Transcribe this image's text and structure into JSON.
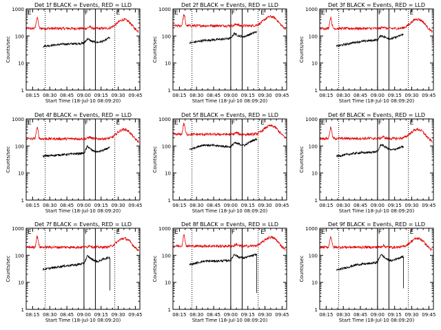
{
  "page": {
    "background": "#ffffff"
  },
  "style": {
    "events_color": "#000000",
    "lld_color": "#e00000",
    "axis_color": "#000000"
  },
  "shared": {
    "ylabel": "Counts/sec",
    "xlabel": "Start Time (18-Jul-10 08:09:20)",
    "x_ticks": [
      "08:15",
      "08:30",
      "08:45",
      "09:00",
      "09:15",
      "09:30",
      "09:45"
    ],
    "y_ticks": [
      "1",
      "10",
      "100",
      "1000"
    ],
    "ylim": [
      1,
      1000
    ],
    "y_scale": "log",
    "xlim": [
      "08:09:20",
      "09:49:00"
    ],
    "marker_F": "F",
    "marker_E": "E"
  },
  "chart_data": [
    {
      "type": "line",
      "title": "Det 1f BLACK = Events, RED = LLD",
      "F_window": [
        "09:00",
        "09:10"
      ],
      "E_time": "09:30",
      "dotted": [
        "08:26",
        "09:27"
      ],
      "lld_base": 190,
      "lld_peak": 400,
      "events_pts": [
        [
          8.4,
          42
        ],
        [
          8.7,
          50
        ],
        [
          8.88,
          52
        ],
        [
          9.0,
          54
        ],
        [
          9.05,
          80
        ],
        [
          9.12,
          62
        ],
        [
          9.2,
          58
        ],
        [
          9.3,
          66
        ],
        [
          9.36,
          85
        ],
        [
          9.38,
          85
        ]
      ],
      "drop": null
    },
    {
      "type": "line",
      "title": "Det 2f BLACK = Events, RED = LLD",
      "F_window": [
        "09:00",
        "09:10"
      ],
      "E_time": "09:28",
      "dotted": [
        "08:26",
        "09:24"
      ],
      "lld_base": 240,
      "lld_peak": 520,
      "events_pts": [
        [
          8.4,
          55
        ],
        [
          8.6,
          68
        ],
        [
          8.85,
          75
        ],
        [
          9.0,
          82
        ],
        [
          9.05,
          125
        ],
        [
          9.12,
          100
        ],
        [
          9.2,
          95
        ],
        [
          9.3,
          120
        ],
        [
          9.36,
          140
        ],
        [
          9.38,
          140
        ]
      ],
      "drop": null
    },
    {
      "type": "line",
      "title": "Det 3f BLACK = Events, RED = LLD",
      "F_window": [
        "09:00",
        "09:10"
      ],
      "E_time": "09:30",
      "dotted": [
        "08:26",
        "09:27"
      ],
      "lld_base": 190,
      "lld_peak": 420,
      "events_pts": [
        [
          8.4,
          42
        ],
        [
          8.7,
          60
        ],
        [
          8.9,
          68
        ],
        [
          9.0,
          72
        ],
        [
          9.05,
          105
        ],
        [
          9.12,
          88
        ],
        [
          9.2,
          78
        ],
        [
          9.3,
          96
        ],
        [
          9.36,
          112
        ],
        [
          9.38,
          112
        ]
      ],
      "drop": null
    },
    {
      "type": "line",
      "title": "Det 4f BLACK = Events, RED = LLD",
      "F_window": [
        "09:00",
        "09:10"
      ],
      "E_time": "09:30",
      "dotted": [
        "08:26",
        "09:27"
      ],
      "lld_base": 185,
      "lld_peak": 410,
      "events_pts": [
        [
          8.4,
          42
        ],
        [
          8.7,
          48
        ],
        [
          8.9,
          52
        ],
        [
          9.0,
          54
        ],
        [
          9.05,
          98
        ],
        [
          9.12,
          68
        ],
        [
          9.2,
          60
        ],
        [
          9.3,
          72
        ],
        [
          9.36,
          85
        ],
        [
          9.38,
          85
        ]
      ],
      "drop": null
    },
    {
      "type": "line",
      "title": "Det 5f BLACK = Events, RED = LLD",
      "F_window": [
        "09:00",
        "09:10"
      ],
      "E_time": "09:28",
      "dotted": [
        "08:26",
        "09:24"
      ],
      "lld_base": 270,
      "lld_peak": 560,
      "events_pts": [
        [
          8.4,
          75
        ],
        [
          8.6,
          110
        ],
        [
          8.85,
          100
        ],
        [
          9.0,
          92
        ],
        [
          9.05,
          130
        ],
        [
          9.12,
          118
        ],
        [
          9.2,
          105
        ],
        [
          9.3,
          150
        ],
        [
          9.36,
          175
        ],
        [
          9.38,
          175
        ]
      ],
      "drop": null
    },
    {
      "type": "line",
      "title": "Det 6f BLACK = Events, RED = LLD",
      "F_window": [
        "09:00",
        "09:10"
      ],
      "E_time": "09:30",
      "dotted": [
        "08:26",
        "09:27"
      ],
      "lld_base": 190,
      "lld_peak": 410,
      "events_pts": [
        [
          8.4,
          42
        ],
        [
          8.7,
          55
        ],
        [
          8.9,
          58
        ],
        [
          9.0,
          62
        ],
        [
          9.05,
          115
        ],
        [
          9.12,
          90
        ],
        [
          9.2,
          70
        ],
        [
          9.3,
          82
        ],
        [
          9.36,
          92
        ],
        [
          9.38,
          92
        ]
      ],
      "drop": null
    },
    {
      "type": "line",
      "title": "Det 7f BLACK = Events, RED = LLD",
      "F_window": [
        "09:00",
        "09:10"
      ],
      "E_time": "09:30",
      "dotted": [
        "08:26",
        "09:27"
      ],
      "lld_base": 200,
      "lld_peak": 420,
      "events_pts": [
        [
          8.4,
          30
        ],
        [
          8.7,
          40
        ],
        [
          8.9,
          45
        ],
        [
          9.0,
          50
        ],
        [
          9.05,
          95
        ],
        [
          9.12,
          70
        ],
        [
          9.2,
          58
        ],
        [
          9.3,
          75
        ],
        [
          9.36,
          82
        ],
        [
          9.38,
          82
        ]
      ],
      "drop": [
        9.38,
        5
      ]
    },
    {
      "type": "line",
      "title": "Det 8f BLACK = Events, RED = LLD",
      "F_window": [
        "09:00",
        "09:10"
      ],
      "E_time": "09:28",
      "dotted": [
        "08:26",
        "09:24"
      ],
      "lld_base": 220,
      "lld_peak": 460,
      "events_pts": [
        [
          8.4,
          45
        ],
        [
          8.6,
          60
        ],
        [
          8.85,
          62
        ],
        [
          9.0,
          65
        ],
        [
          9.05,
          110
        ],
        [
          9.12,
          85
        ],
        [
          9.2,
          80
        ],
        [
          9.3,
          95
        ],
        [
          9.36,
          105
        ],
        [
          9.38,
          105
        ]
      ],
      "drop": [
        9.38,
        4
      ]
    },
    {
      "type": "line",
      "title": "Det 9f BLACK = Events, RED = LLD",
      "F_window": [
        "09:00",
        "09:10"
      ],
      "E_time": "09:30",
      "dotted": [
        "08:26",
        "09:27"
      ],
      "lld_base": 200,
      "lld_peak": 420,
      "events_pts": [
        [
          8.4,
          28
        ],
        [
          8.7,
          45
        ],
        [
          8.9,
          50
        ],
        [
          9.0,
          55
        ],
        [
          9.05,
          110
        ],
        [
          9.12,
          75
        ],
        [
          9.2,
          62
        ],
        [
          9.3,
          78
        ],
        [
          9.36,
          88
        ],
        [
          9.38,
          88
        ]
      ],
      "drop": [
        9.38,
        6
      ]
    }
  ]
}
